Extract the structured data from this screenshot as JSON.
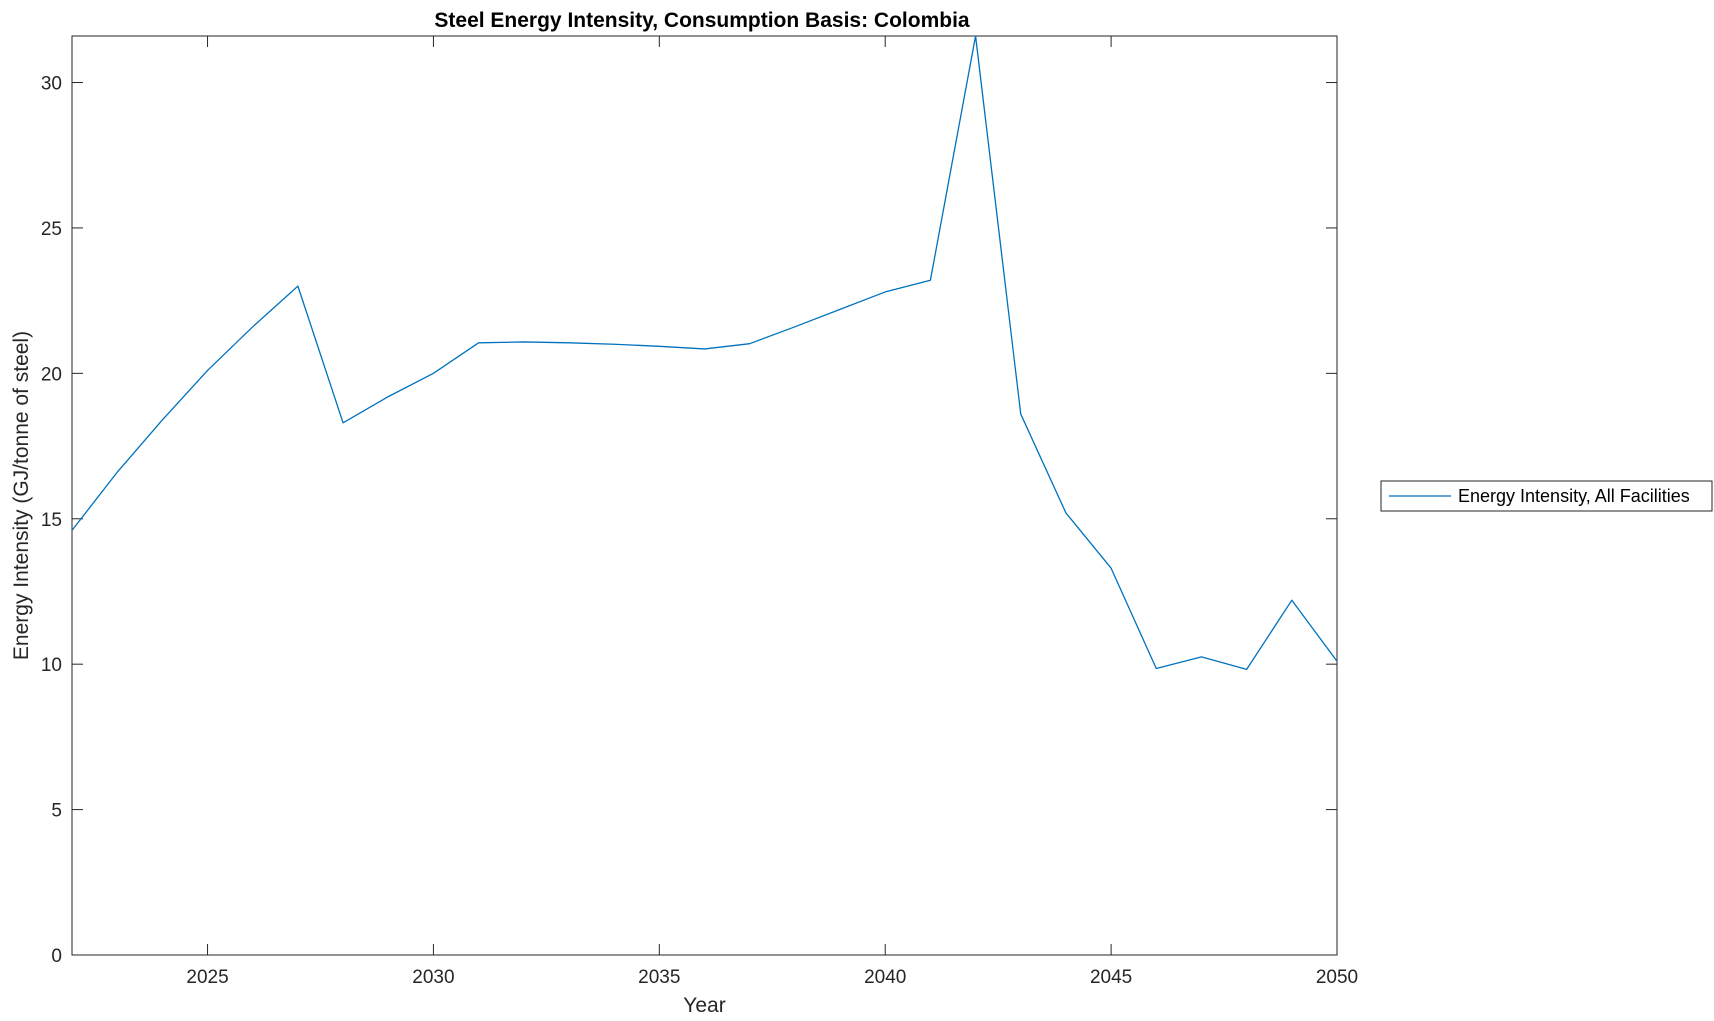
{
  "chart_data": {
    "type": "line",
    "title": "Steel Energy Intensity, Consumption Basis: Colombia",
    "xlabel": "Year",
    "ylabel": "Energy Intensity (GJ/tonne of steel)",
    "xlim": [
      2022,
      2050
    ],
    "ylim": [
      0,
      31.6
    ],
    "xticks": [
      2025,
      2030,
      2035,
      2040,
      2045,
      2050
    ],
    "yticks": [
      0,
      5,
      10,
      15,
      20,
      25,
      30
    ],
    "grid": false,
    "legend_position": "outside-right",
    "series": [
      {
        "name": "Energy Intensity, All Facilities",
        "color": "#0072BD",
        "x": [
          2022,
          2023,
          2024,
          2025,
          2026,
          2027,
          2028,
          2029,
          2030,
          2031,
          2032,
          2033,
          2034,
          2035,
          2036,
          2037,
          2038,
          2039,
          2040,
          2041,
          2042,
          2043,
          2044,
          2045,
          2046,
          2047,
          2048,
          2049,
          2050
        ],
        "values": [
          14.6,
          16.6,
          18.4,
          20.1,
          21.6,
          23.0,
          18.3,
          19.2,
          20.0,
          21.05,
          21.08,
          21.05,
          21.0,
          20.93,
          20.84,
          21.02,
          21.6,
          22.2,
          22.8,
          23.2,
          31.6,
          18.6,
          15.2,
          13.3,
          9.85,
          10.25,
          9.82,
          12.2,
          10.1
        ]
      }
    ]
  }
}
